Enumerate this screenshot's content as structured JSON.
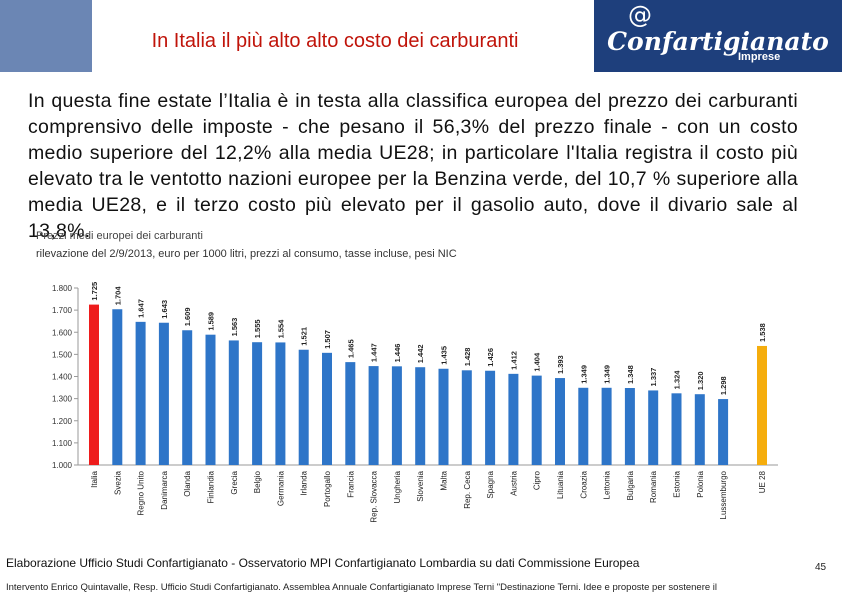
{
  "header": {
    "title": "In Italia il più alto alto costo dei carburanti",
    "logo": {
      "name": "Confartigianato",
      "sub": "Imprese",
      "symbol": "@"
    },
    "colors": {
      "title": "#c0140a",
      "logo_bg": "#1e3f7c",
      "corner": "#6b86b4"
    }
  },
  "intro": {
    "text": "In questa fine estate l’Italia è in testa alla classifica europea del prezzo dei carburanti comprensivo delle imposte - che pesano il 56,3% del prezzo finale - con un costo medio superiore del 12,2% alla media UE28; in particolare l'Italia registra il costo più elevato tra le ventotto nazioni europee per la Benzina verde, del 10,7 % superiore alla media UE28, e il terzo costo più elevato per il gasolio auto, dove il divario sale al 13,8%."
  },
  "chart_data": {
    "type": "bar",
    "title": "Prezzi medi europei dei carburanti",
    "subtitle": "rilevazione del 2/9/2013, euro per 1000 litri, prezzi al consumo, tasse incluse, pesi NIC",
    "categories": [
      "Italia",
      "Svezia",
      "Regno Unito",
      "Danimarca",
      "Olanda",
      "Finlandia",
      "Grecia",
      "Belgio",
      "Germania",
      "Irlanda",
      "Portogallo",
      "Francia",
      "Rep. Slovacca",
      "Ungheria",
      "Slovenia",
      "Malta",
      "Rep. Ceca",
      "Spagna",
      "Austria",
      "Cipro",
      "Lituania",
      "Croazia",
      "Lettonia",
      "Bulgaria",
      "Romania",
      "Estonia",
      "Polonia",
      "Lussemburgo",
      "UE 28"
    ],
    "values": [
      1.725,
      1.704,
      1.647,
      1.643,
      1.609,
      1.589,
      1.563,
      1.555,
      1.554,
      1.521,
      1.507,
      1.465,
      1.447,
      1.446,
      1.442,
      1.435,
      1.428,
      1.426,
      1.412,
      1.404,
      1.393,
      1.349,
      1.349,
      1.348,
      1.337,
      1.324,
      1.32,
      1.298,
      1.538
    ],
    "value_labels": [
      "1.725",
      "1.704",
      "1.647",
      "1.643",
      "1.609",
      "1.589",
      "1.563",
      "1.555",
      "1.554",
      "1.521",
      "1.507",
      "1.465",
      "1.447",
      "1.446",
      "1.442",
      "1.435",
      "1.428",
      "1.426",
      "1.412",
      "1.404",
      "1.393",
      "1.349",
      "1.349",
      "1.348",
      "1.337",
      "1.324",
      "1.320",
      "1.298",
      "1.538"
    ],
    "y_ticks": [
      "1.000",
      "1.100",
      "1.200",
      "1.300",
      "1.400",
      "1.500",
      "1.600",
      "1.700",
      "1.800"
    ],
    "ylim": [
      1.0,
      1.8
    ],
    "grid": false,
    "colors": {
      "default": "#2e75c8",
      "Italia": "#ee1c1c",
      "UE 28": "#f5ad0d"
    }
  },
  "footer": {
    "source": "Elaborazione Ufficio Studi Confartigianato - Osservatorio MPI Confartigianato Lombardia su dati Commissione Europea",
    "page_number": "45",
    "note": "Intervento Enrico Quintavalle, Resp. Ufficio Studi Confartigianato. Assemblea Annuale Confartigianato Imprese Terni \"Destinazione Terni. Idee e proposte per sostenere il"
  }
}
